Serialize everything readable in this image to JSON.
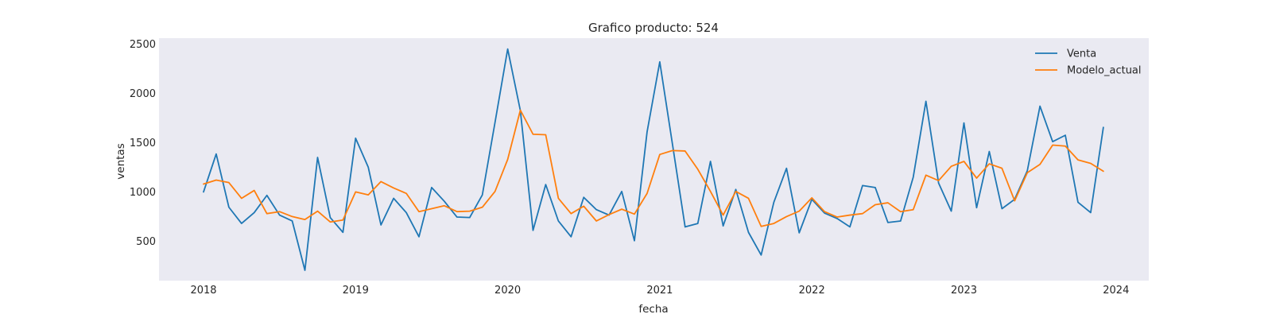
{
  "chart_data": {
    "type": "line",
    "title": "Grafico producto: 524",
    "xlabel": "fecha",
    "ylabel": "ventas",
    "x_start": "2018-01",
    "x_end": "2023-12",
    "x_tick_labels": [
      "2018",
      "2019",
      "2020",
      "2021",
      "2022",
      "2023",
      "2024"
    ],
    "y_ticks": [
      500,
      1000,
      1500,
      2000,
      2500
    ],
    "ylim": [
      100,
      2560
    ],
    "grid": false,
    "legend_position": "top-right",
    "background": "#eaeaf2",
    "series": [
      {
        "name": "Venta",
        "color": "#1f77b4",
        "values": [
          1000,
          1385,
          845,
          680,
          790,
          965,
          765,
          705,
          205,
          1350,
          740,
          590,
          1545,
          1250,
          665,
          935,
          790,
          545,
          1045,
          905,
          745,
          740,
          970,
          1705,
          2450,
          1825,
          610,
          1075,
          705,
          545,
          945,
          820,
          765,
          1005,
          505,
          1610,
          2320,
          1485,
          645,
          680,
          1310,
          655,
          1025,
          590,
          360,
          895,
          1240,
          585,
          925,
          785,
          730,
          645,
          1065,
          1045,
          690,
          705,
          1150,
          1920,
          1090,
          805,
          1700,
          840,
          1410,
          830,
          925,
          1215,
          1870,
          1510,
          1575,
          895,
          790,
          1655
        ]
      },
      {
        "name": "Modelo_actual",
        "color": "#ff7f0e",
        "values": [
          1080,
          1120,
          1095,
          935,
          1015,
          780,
          800,
          750,
          720,
          805,
          695,
          715,
          1000,
          970,
          1105,
          1040,
          985,
          800,
          830,
          860,
          800,
          805,
          845,
          1005,
          1330,
          1830,
          1585,
          1580,
          935,
          780,
          855,
          705,
          770,
          825,
          775,
          985,
          1380,
          1420,
          1415,
          1230,
          1005,
          765,
          1005,
          935,
          650,
          680,
          750,
          805,
          940,
          800,
          745,
          765,
          780,
          870,
          890,
          800,
          820,
          1170,
          1115,
          1260,
          1310,
          1140,
          1285,
          1240,
          910,
          1195,
          1280,
          1475,
          1465,
          1325,
          1290,
          1210
        ]
      }
    ]
  }
}
